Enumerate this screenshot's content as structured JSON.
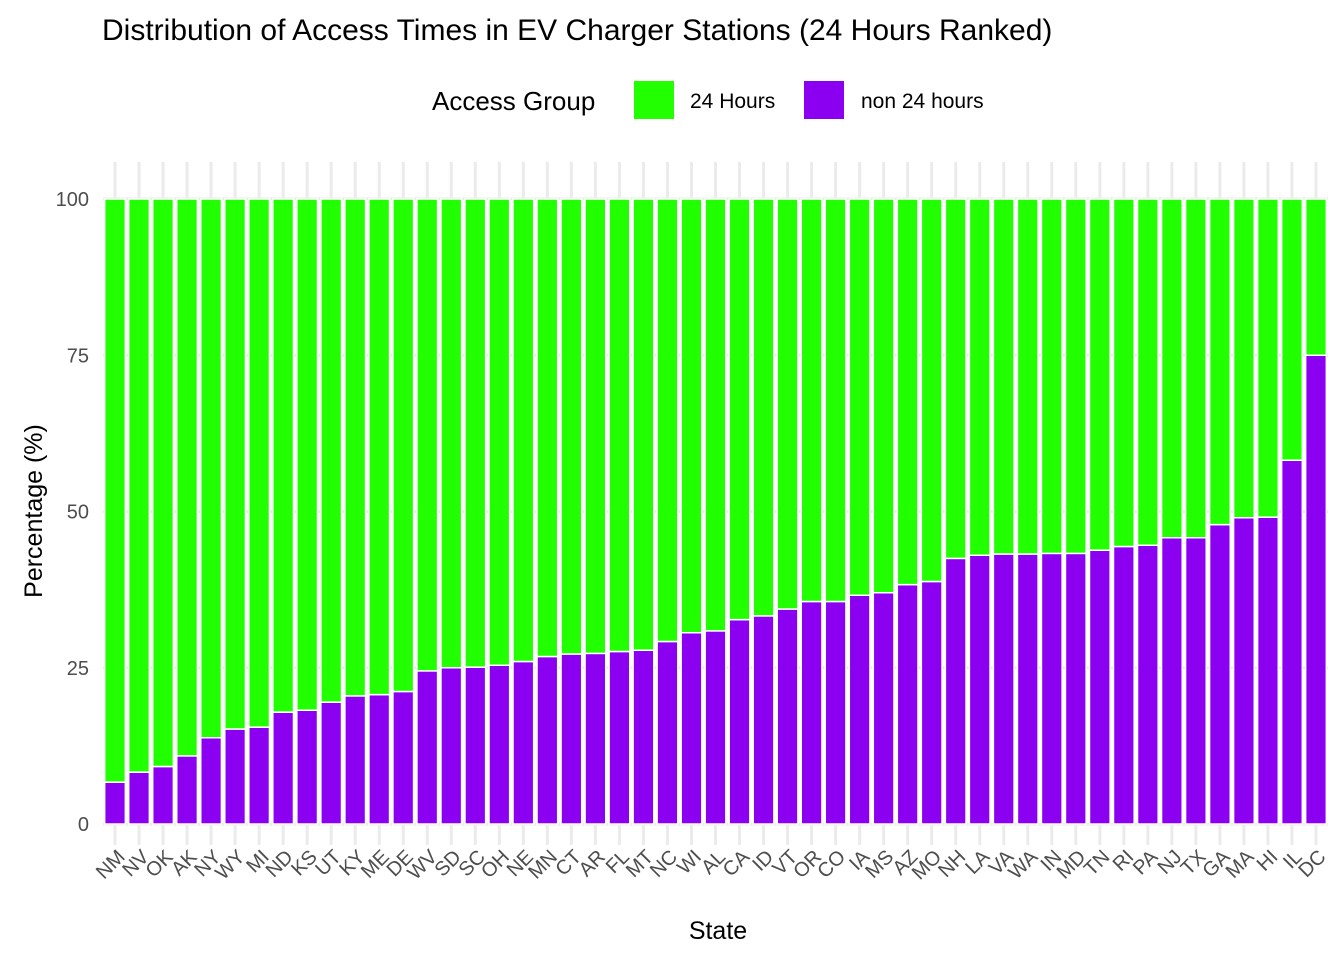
{
  "chart_data": {
    "type": "bar",
    "stacked": true,
    "title": "Distribution of Access Times in EV Charger Stations (24 Hours Ranked)",
    "xlabel": "State",
    "ylabel": "Percentage (%)",
    "ylim": [
      0,
      100
    ],
    "yticks": [
      0,
      25,
      50,
      75,
      100
    ],
    "legend": {
      "title": "Access Group",
      "position": "top",
      "entries": [
        {
          "label": "24 Hours",
          "color": "#22ff00"
        },
        {
          "label": "non 24 hours",
          "color": "#8b00f0"
        }
      ]
    },
    "categories": [
      "NM",
      "NV",
      "OK",
      "AK",
      "NY",
      "WY",
      "MI",
      "ND",
      "KS",
      "UT",
      "KY",
      "ME",
      "DE",
      "WV",
      "SD",
      "SC",
      "OH",
      "NE",
      "MN",
      "CT",
      "AR",
      "FL",
      "MT",
      "NC",
      "WI",
      "AL",
      "CA",
      "ID",
      "VT",
      "OR",
      "CO",
      "IA",
      "MS",
      "AZ",
      "MO",
      "NH",
      "LA",
      "VA",
      "WA",
      "IN",
      "MD",
      "TN",
      "RI",
      "PA",
      "NJ",
      "TX",
      "GA",
      "MA",
      "HI",
      "IL",
      "DC"
    ],
    "series": [
      {
        "name": "non 24 hours",
        "color": "#8b00f0",
        "values": [
          6.7,
          8.3,
          9.2,
          10.9,
          13.8,
          15.2,
          15.5,
          17.9,
          18.2,
          19.5,
          20.5,
          20.7,
          21.2,
          24.5,
          25.0,
          25.1,
          25.4,
          26.0,
          26.8,
          27.2,
          27.3,
          27.6,
          27.8,
          29.2,
          30.6,
          30.9,
          32.7,
          33.3,
          34.4,
          35.6,
          35.6,
          36.6,
          37.0,
          38.3,
          38.8,
          42.5,
          43.0,
          43.2,
          43.2,
          43.3,
          43.3,
          43.8,
          44.4,
          44.6,
          45.8,
          45.8,
          47.9,
          49.0,
          49.1,
          58.2,
          75.0
        ]
      },
      {
        "name": "24 Hours",
        "color": "#22ff00",
        "values": [
          93.3,
          91.7,
          90.8,
          89.1,
          86.2,
          84.8,
          84.5,
          82.1,
          81.8,
          80.5,
          79.5,
          79.3,
          78.8,
          75.5,
          75.0,
          74.9,
          74.6,
          74.0,
          73.2,
          72.8,
          72.7,
          72.4,
          72.2,
          70.8,
          69.4,
          69.1,
          67.3,
          66.7,
          65.6,
          64.4,
          64.4,
          63.4,
          63.0,
          61.7,
          61.2,
          57.5,
          57.0,
          56.8,
          56.8,
          56.7,
          56.7,
          56.2,
          55.6,
          55.4,
          54.2,
          54.2,
          52.1,
          51.0,
          50.9,
          41.8,
          25.0
        ]
      }
    ]
  }
}
